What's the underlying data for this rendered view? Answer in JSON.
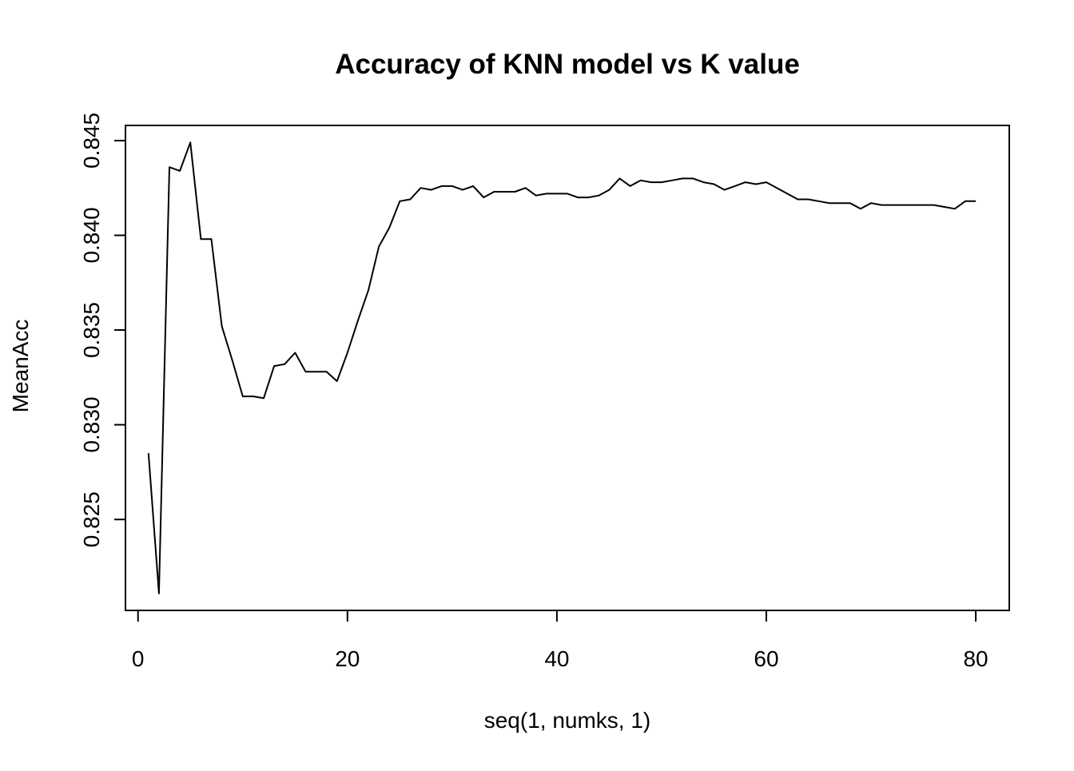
{
  "chart_data": {
    "type": "line",
    "title": "Accuracy of KNN model vs K value",
    "xlabel": "seq(1, numks, 1)",
    "ylabel": "MeanAcc",
    "xlim": [
      -1.2,
      83.2
    ],
    "ylim": [
      0.8202,
      0.8458
    ],
    "xticks": [
      0,
      20,
      40,
      60,
      80
    ],
    "xtick_labels": [
      "0",
      "20",
      "40",
      "60",
      "80"
    ],
    "yticks": [
      0.825,
      0.83,
      0.835,
      0.84,
      0.845
    ],
    "ytick_labels": [
      "0.825",
      "0.830",
      "0.835",
      "0.840",
      "0.845"
    ],
    "grid": false,
    "line_color": "#000000",
    "series": [
      {
        "x": [
          1,
          2,
          3,
          4,
          5,
          6,
          7,
          8,
          9,
          10,
          11,
          12,
          13,
          14,
          15,
          16,
          17,
          18,
          19,
          20,
          21,
          22,
          23,
          24,
          25,
          26,
          27,
          28,
          29,
          30,
          31,
          32,
          33,
          34,
          35,
          36,
          37,
          38,
          39,
          40,
          41,
          42,
          43,
          44,
          45,
          46,
          47,
          48,
          49,
          50,
          51,
          52,
          53,
          54,
          55,
          56,
          57,
          58,
          59,
          60,
          61,
          62,
          63,
          64,
          65,
          66,
          67,
          68,
          69,
          70,
          71,
          72,
          73,
          74,
          75,
          76,
          77,
          78,
          79,
          80
        ],
        "values": [
          0.8285,
          0.8211,
          0.8436,
          0.8434,
          0.8449,
          0.8398,
          0.8398,
          0.8352,
          0.8334,
          0.8315,
          0.8315,
          0.8314,
          0.8331,
          0.8332,
          0.8338,
          0.8328,
          0.8328,
          0.8328,
          0.8323,
          0.8338,
          0.8355,
          0.8371,
          0.8394,
          0.8404,
          0.8418,
          0.8419,
          0.8425,
          0.8424,
          0.8426,
          0.8426,
          0.8424,
          0.8426,
          0.842,
          0.8423,
          0.8423,
          0.8423,
          0.8425,
          0.8421,
          0.8422,
          0.8422,
          0.8422,
          0.842,
          0.842,
          0.8421,
          0.8424,
          0.843,
          0.8426,
          0.8429,
          0.8428,
          0.8428,
          0.8429,
          0.843,
          0.843,
          0.8428,
          0.8427,
          0.8424,
          0.8426,
          0.8428,
          0.8427,
          0.8428,
          0.8425,
          0.8422,
          0.8419,
          0.8419,
          0.8418,
          0.8417,
          0.8417,
          0.8417,
          0.8414,
          0.8417,
          0.8416,
          0.8416,
          0.8416,
          0.8416,
          0.8416,
          0.8416,
          0.8415,
          0.8414,
          0.8418,
          0.8418
        ]
      }
    ]
  }
}
